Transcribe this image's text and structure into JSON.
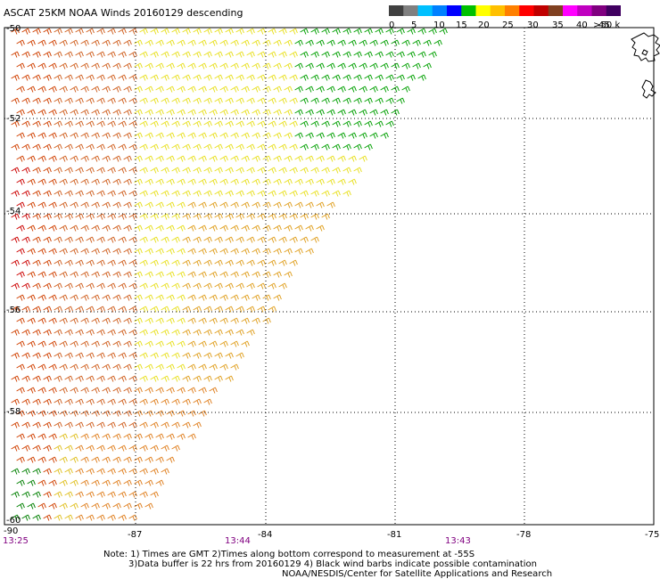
{
  "title": "ASCAT 25KM NOAA Winds 20160129 descending",
  "legend": {
    "colors": [
      "#404040",
      "#808080",
      "#00c0ff",
      "#0080ff",
      "#0000ff",
      "#00c000",
      "#ffff00",
      "#ffc000",
      "#ff8000",
      "#ff0000",
      "#c00000",
      "#804020",
      "#ff00ff",
      "#c000c0",
      "#800080",
      "#400060"
    ],
    "labels": [
      "0",
      "5",
      "10",
      "15",
      "20",
      "25",
      "30",
      "35",
      "40",
      "45",
      ">50 knots"
    ]
  },
  "axes": {
    "lon_labels": [
      "-87",
      "-84",
      "-81",
      "-78",
      "-75"
    ],
    "corner_lon": "-90",
    "lat_labels": [
      "-50",
      "-52",
      "-54",
      "-56",
      "-58"
    ],
    "corner_lat": "-60"
  },
  "times": [
    "13:25",
    "13:44",
    "13:43"
  ],
  "notes": [
    "Note: 1) Times are GMT 2)Times along bottom correspond to measurement at -55S",
    "3)Data buffer is 22 hrs from 20160129 4) Black wind barbs indicate possible contamination",
    "NOAA/NESDIS/Center for Satellite Applications and Research"
  ],
  "wind_field": {
    "units": "knots",
    "direction": "from the west-northwest",
    "speed_zones": [
      "orange-red (30-35 kt) along the west edge",
      "yellow (20-25 kt) in the middle",
      "green (15-20 kt) in the northeast",
      "orange (25-30 kt) in the south"
    ]
  }
}
